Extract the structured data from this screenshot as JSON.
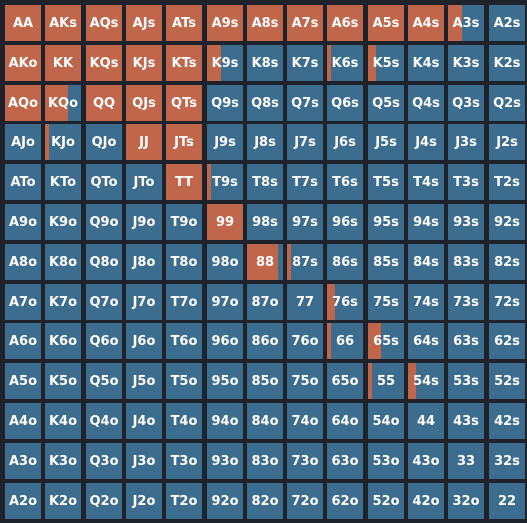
{
  "colors": {
    "background": "#1e222a",
    "fold": "#3c6d8e",
    "raise": "#c0664a",
    "text": "#ffffff"
  },
  "legend": {
    "fill_color_meaning": "",
    "base_color_meaning": ""
  },
  "grid": {
    "rows": [
      [
        {
          "hand": "AA",
          "raise": 1.0
        },
        {
          "hand": "AKs",
          "raise": 1.0
        },
        {
          "hand": "AQs",
          "raise": 1.0
        },
        {
          "hand": "AJs",
          "raise": 1.0
        },
        {
          "hand": "ATs",
          "raise": 1.0
        },
        {
          "hand": "A9s",
          "raise": 1.0
        },
        {
          "hand": "A8s",
          "raise": 1.0
        },
        {
          "hand": "A7s",
          "raise": 1.0
        },
        {
          "hand": "A6s",
          "raise": 1.0
        },
        {
          "hand": "A5s",
          "raise": 1.0
        },
        {
          "hand": "A4s",
          "raise": 1.0
        },
        {
          "hand": "A3s",
          "raise": 0.4
        },
        {
          "hand": "A2s",
          "raise": 0.0
        }
      ],
      [
        {
          "hand": "AKo",
          "raise": 1.0
        },
        {
          "hand": "KK",
          "raise": 1.0
        },
        {
          "hand": "KQs",
          "raise": 1.0
        },
        {
          "hand": "KJs",
          "raise": 1.0
        },
        {
          "hand": "KTs",
          "raise": 1.0
        },
        {
          "hand": "K9s",
          "raise": 0.38
        },
        {
          "hand": "K8s",
          "raise": 0.0
        },
        {
          "hand": "K7s",
          "raise": 0.0
        },
        {
          "hand": "K6s",
          "raise": 0.12
        },
        {
          "hand": "K5s",
          "raise": 0.22
        },
        {
          "hand": "K4s",
          "raise": 0.0
        },
        {
          "hand": "K3s",
          "raise": 0.0
        },
        {
          "hand": "K2s",
          "raise": 0.0
        }
      ],
      [
        {
          "hand": "AQo",
          "raise": 1.0
        },
        {
          "hand": "KQo",
          "raise": 0.65
        },
        {
          "hand": "QQ",
          "raise": 1.0
        },
        {
          "hand": "QJs",
          "raise": 1.0
        },
        {
          "hand": "QTs",
          "raise": 1.0
        },
        {
          "hand": "Q9s",
          "raise": 0.0
        },
        {
          "hand": "Q8s",
          "raise": 0.0
        },
        {
          "hand": "Q7s",
          "raise": 0.0
        },
        {
          "hand": "Q6s",
          "raise": 0.0
        },
        {
          "hand": "Q5s",
          "raise": 0.0
        },
        {
          "hand": "Q4s",
          "raise": 0.0
        },
        {
          "hand": "Q3s",
          "raise": 0.0
        },
        {
          "hand": "Q2s",
          "raise": 0.0
        }
      ],
      [
        {
          "hand": "AJo",
          "raise": 0.0
        },
        {
          "hand": "KJo",
          "raise": 0.1
        },
        {
          "hand": "QJo",
          "raise": 0.0
        },
        {
          "hand": "JJ",
          "raise": 1.0
        },
        {
          "hand": "JTs",
          "raise": 1.0
        },
        {
          "hand": "J9s",
          "raise": 0.0
        },
        {
          "hand": "J8s",
          "raise": 0.0
        },
        {
          "hand": "J7s",
          "raise": 0.0
        },
        {
          "hand": "J6s",
          "raise": 0.0
        },
        {
          "hand": "J5s",
          "raise": 0.0
        },
        {
          "hand": "J4s",
          "raise": 0.0
        },
        {
          "hand": "J3s",
          "raise": 0.0
        },
        {
          "hand": "J2s",
          "raise": 0.0
        }
      ],
      [
        {
          "hand": "ATo",
          "raise": 0.0
        },
        {
          "hand": "KTo",
          "raise": 0.0
        },
        {
          "hand": "QTo",
          "raise": 0.0
        },
        {
          "hand": "JTo",
          "raise": 0.0
        },
        {
          "hand": "TT",
          "raise": 1.0
        },
        {
          "hand": "T9s",
          "raise": 0.1
        },
        {
          "hand": "T8s",
          "raise": 0.0
        },
        {
          "hand": "T7s",
          "raise": 0.0
        },
        {
          "hand": "T6s",
          "raise": 0.0
        },
        {
          "hand": "T5s",
          "raise": 0.0
        },
        {
          "hand": "T4s",
          "raise": 0.0
        },
        {
          "hand": "T3s",
          "raise": 0.0
        },
        {
          "hand": "T2s",
          "raise": 0.0
        }
      ],
      [
        {
          "hand": "A9o",
          "raise": 0.0
        },
        {
          "hand": "K9o",
          "raise": 0.0
        },
        {
          "hand": "Q9o",
          "raise": 0.0
        },
        {
          "hand": "J9o",
          "raise": 0.0
        },
        {
          "hand": "T9o",
          "raise": 0.0
        },
        {
          "hand": "99",
          "raise": 1.0
        },
        {
          "hand": "98s",
          "raise": 0.0
        },
        {
          "hand": "97s",
          "raise": 0.0
        },
        {
          "hand": "96s",
          "raise": 0.0
        },
        {
          "hand": "95s",
          "raise": 0.0
        },
        {
          "hand": "94s",
          "raise": 0.0
        },
        {
          "hand": "93s",
          "raise": 0.0
        },
        {
          "hand": "92s",
          "raise": 0.0
        }
      ],
      [
        {
          "hand": "A8o",
          "raise": 0.0
        },
        {
          "hand": "K8o",
          "raise": 0.0
        },
        {
          "hand": "Q8o",
          "raise": 0.0
        },
        {
          "hand": "J8o",
          "raise": 0.0
        },
        {
          "hand": "T8o",
          "raise": 0.0
        },
        {
          "hand": "98o",
          "raise": 0.0
        },
        {
          "hand": "88",
          "raise": 0.85
        },
        {
          "hand": "87s",
          "raise": 0.12
        },
        {
          "hand": "86s",
          "raise": 0.0
        },
        {
          "hand": "85s",
          "raise": 0.0
        },
        {
          "hand": "84s",
          "raise": 0.0
        },
        {
          "hand": "83s",
          "raise": 0.0
        },
        {
          "hand": "82s",
          "raise": 0.0
        }
      ],
      [
        {
          "hand": "A7o",
          "raise": 0.0
        },
        {
          "hand": "K7o",
          "raise": 0.0
        },
        {
          "hand": "Q7o",
          "raise": 0.0
        },
        {
          "hand": "J7o",
          "raise": 0.0
        },
        {
          "hand": "T7o",
          "raise": 0.0
        },
        {
          "hand": "97o",
          "raise": 0.0
        },
        {
          "hand": "87o",
          "raise": 0.0
        },
        {
          "hand": "77",
          "raise": 0.0
        },
        {
          "hand": "76s",
          "raise": 0.22
        },
        {
          "hand": "75s",
          "raise": 0.0
        },
        {
          "hand": "74s",
          "raise": 0.0
        },
        {
          "hand": "73s",
          "raise": 0.0
        },
        {
          "hand": "72s",
          "raise": 0.0
        }
      ],
      [
        {
          "hand": "A6o",
          "raise": 0.0
        },
        {
          "hand": "K6o",
          "raise": 0.0
        },
        {
          "hand": "Q6o",
          "raise": 0.0
        },
        {
          "hand": "J6o",
          "raise": 0.0
        },
        {
          "hand": "T6o",
          "raise": 0.0
        },
        {
          "hand": "96o",
          "raise": 0.0
        },
        {
          "hand": "86o",
          "raise": 0.0
        },
        {
          "hand": "76o",
          "raise": 0.0
        },
        {
          "hand": "66",
          "raise": 0.1
        },
        {
          "hand": "65s",
          "raise": 0.35
        },
        {
          "hand": "64s",
          "raise": 0.0
        },
        {
          "hand": "63s",
          "raise": 0.0
        },
        {
          "hand": "62s",
          "raise": 0.0
        }
      ],
      [
        {
          "hand": "A5o",
          "raise": 0.0
        },
        {
          "hand": "K5o",
          "raise": 0.0
        },
        {
          "hand": "Q5o",
          "raise": 0.0
        },
        {
          "hand": "J5o",
          "raise": 0.0
        },
        {
          "hand": "T5o",
          "raise": 0.0
        },
        {
          "hand": "95o",
          "raise": 0.0
        },
        {
          "hand": "85o",
          "raise": 0.0
        },
        {
          "hand": "75o",
          "raise": 0.0
        },
        {
          "hand": "65o",
          "raise": 0.0
        },
        {
          "hand": "55",
          "raise": 0.1
        },
        {
          "hand": "54s",
          "raise": 0.22
        },
        {
          "hand": "53s",
          "raise": 0.0
        },
        {
          "hand": "52s",
          "raise": 0.0
        }
      ],
      [
        {
          "hand": "A4o",
          "raise": 0.0
        },
        {
          "hand": "K4o",
          "raise": 0.0
        },
        {
          "hand": "Q4o",
          "raise": 0.0
        },
        {
          "hand": "J4o",
          "raise": 0.0
        },
        {
          "hand": "T4o",
          "raise": 0.0
        },
        {
          "hand": "94o",
          "raise": 0.0
        },
        {
          "hand": "84o",
          "raise": 0.0
        },
        {
          "hand": "74o",
          "raise": 0.0
        },
        {
          "hand": "64o",
          "raise": 0.0
        },
        {
          "hand": "54o",
          "raise": 0.0
        },
        {
          "hand": "44",
          "raise": 0.0
        },
        {
          "hand": "43s",
          "raise": 0.0
        },
        {
          "hand": "42s",
          "raise": 0.0
        }
      ],
      [
        {
          "hand": "A3o",
          "raise": 0.0
        },
        {
          "hand": "K3o",
          "raise": 0.0
        },
        {
          "hand": "Q3o",
          "raise": 0.0
        },
        {
          "hand": "J3o",
          "raise": 0.0
        },
        {
          "hand": "T3o",
          "raise": 0.0
        },
        {
          "hand": "93o",
          "raise": 0.0
        },
        {
          "hand": "83o",
          "raise": 0.0
        },
        {
          "hand": "73o",
          "raise": 0.0
        },
        {
          "hand": "63o",
          "raise": 0.0
        },
        {
          "hand": "53o",
          "raise": 0.0
        },
        {
          "hand": "43o",
          "raise": 0.0
        },
        {
          "hand": "33",
          "raise": 0.0
        },
        {
          "hand": "32s",
          "raise": 0.0
        }
      ],
      [
        {
          "hand": "A2o",
          "raise": 0.0
        },
        {
          "hand": "K2o",
          "raise": 0.0
        },
        {
          "hand": "Q2o",
          "raise": 0.0
        },
        {
          "hand": "J2o",
          "raise": 0.0
        },
        {
          "hand": "T2o",
          "raise": 0.0
        },
        {
          "hand": "92o",
          "raise": 0.0
        },
        {
          "hand": "82o",
          "raise": 0.0
        },
        {
          "hand": "72o",
          "raise": 0.0
        },
        {
          "hand": "62o",
          "raise": 0.0
        },
        {
          "hand": "52o",
          "raise": 0.0
        },
        {
          "hand": "42o",
          "raise": 0.0
        },
        {
          "hand": "32o",
          "raise": 0.0
        },
        {
          "hand": "22",
          "raise": 0.0
        }
      ]
    ]
  }
}
